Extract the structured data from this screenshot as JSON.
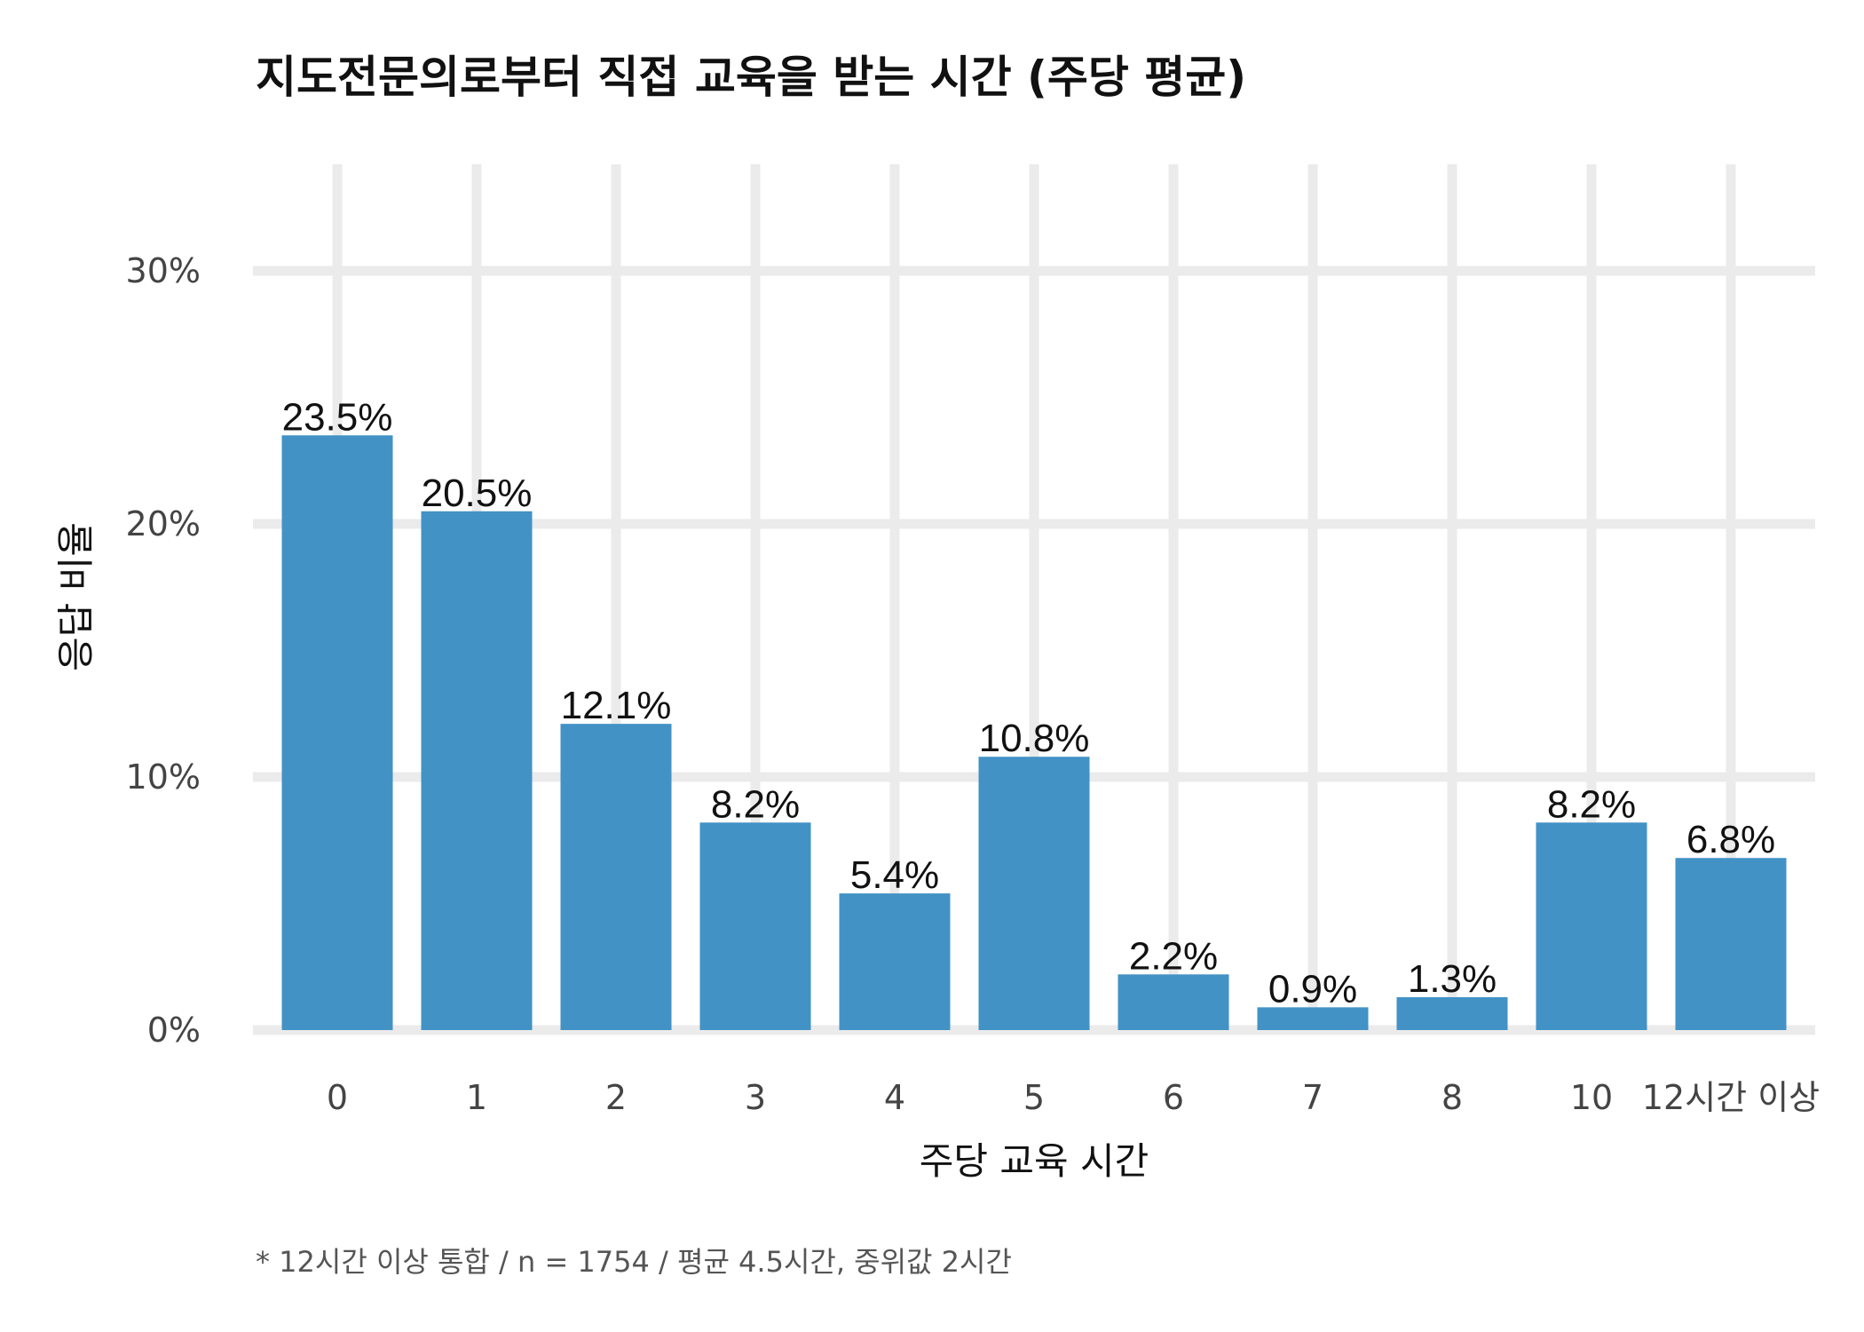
{
  "chart_data": {
    "type": "bar",
    "title": "지도전문의로부터 직접 교육을 받는 시간 (주당 평균)",
    "xlabel": "주당 교육 시간",
    "ylabel": "응답 비율",
    "categories": [
      "0",
      "1",
      "2",
      "3",
      "4",
      "5",
      "6",
      "7",
      "8",
      "10",
      "12시간 이상"
    ],
    "values": [
      23.5,
      20.5,
      12.1,
      8.2,
      5.4,
      10.8,
      2.2,
      0.9,
      1.3,
      8.2,
      6.8
    ],
    "value_labels": [
      "23.5%",
      "20.5%",
      "12.1%",
      "8.2%",
      "5.4%",
      "10.8%",
      "2.2%",
      "0.9%",
      "1.3%",
      "8.2%",
      "6.8%"
    ],
    "yticks": [
      0,
      10,
      20,
      30
    ],
    "ytick_labels": [
      "0%",
      "10%",
      "20%",
      "30%"
    ],
    "ylim": [
      0,
      34
    ],
    "grid": true,
    "bar_color": "#4292c6",
    "caption": "* 12시간 이상 통합 / n = 1754 / 평균 4.5시간, 중위값 2시간"
  }
}
